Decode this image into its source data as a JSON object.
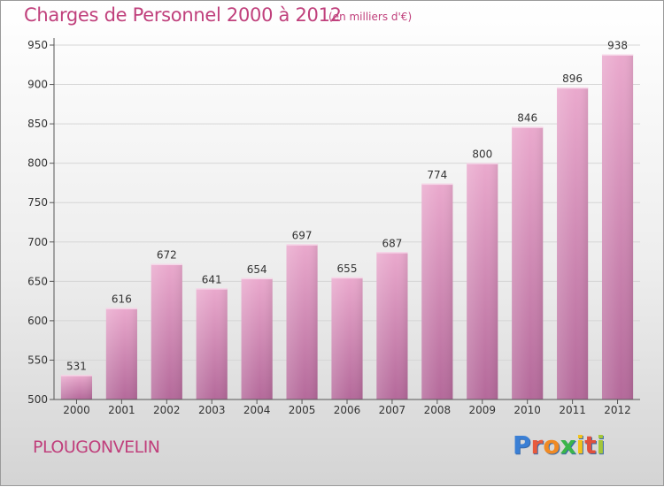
{
  "header": {
    "title": "Charges de Personnel 2000 à 2012",
    "subtitle": "(en milliers d'€)"
  },
  "footer": {
    "commune": "PLOUGONVELIN",
    "logo_text": "Proxiti"
  },
  "colors": {
    "bar_light": "#e9a8cc",
    "bar_dark": "#b56a95",
    "text_accent": "#c0407c",
    "logo_letters": [
      "#3a7fd5",
      "#e85a3c",
      "#f08a24",
      "#3ab54a",
      "#f2c21a",
      "#e0503c",
      "#a4c639"
    ]
  },
  "chart_data": {
    "type": "bar",
    "title": "Charges de Personnel 2000 à 2012",
    "subtitle": "(en milliers d'€)",
    "categories": [
      "2000",
      "2001",
      "2002",
      "2003",
      "2004",
      "2005",
      "2006",
      "2007",
      "2008",
      "2009",
      "2010",
      "2011",
      "2012"
    ],
    "values": [
      531,
      616,
      672,
      641,
      654,
      697,
      655,
      687,
      774,
      800,
      846,
      896,
      938
    ],
    "ylim": [
      500,
      950
    ],
    "yticks": [
      500,
      550,
      600,
      650,
      700,
      750,
      800,
      850,
      900,
      950
    ],
    "grid": true,
    "xlabel": "",
    "ylabel": ""
  }
}
